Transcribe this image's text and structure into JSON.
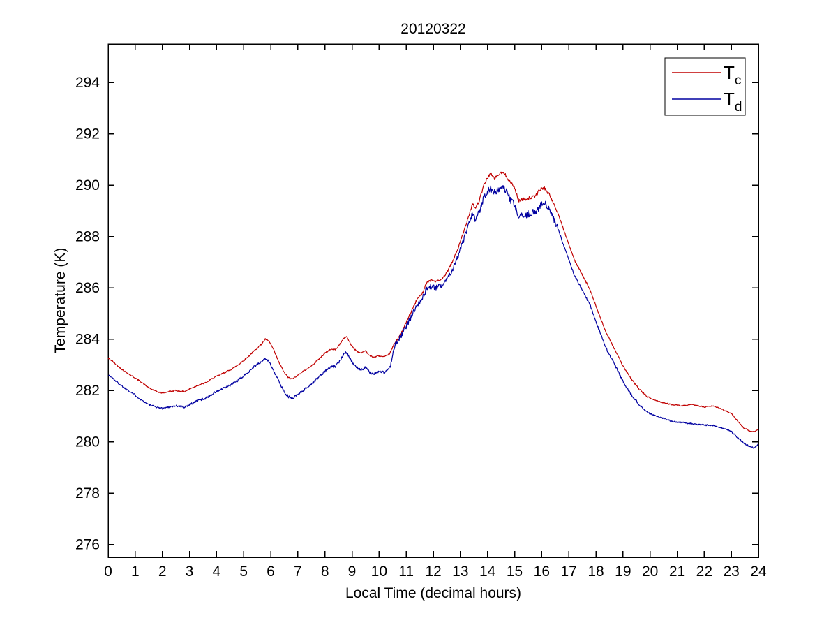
{
  "figure": {
    "title": "20120322",
    "background_color": "#ffffff"
  },
  "chart_data": {
    "type": "line",
    "title": "20120322",
    "xlabel": "Local Time (decimal hours)",
    "ylabel": "Temperature (K)",
    "xlim": [
      0,
      24
    ],
    "ylim": [
      275.5,
      295.5
    ],
    "xticks": [
      0,
      1,
      2,
      3,
      4,
      5,
      6,
      7,
      8,
      9,
      10,
      11,
      12,
      13,
      14,
      15,
      16,
      17,
      18,
      19,
      20,
      21,
      22,
      23,
      24
    ],
    "yticks": [
      276,
      278,
      280,
      282,
      284,
      286,
      288,
      290,
      292,
      294
    ],
    "grid": false,
    "box": true,
    "axis_color": "#000000",
    "legend": {
      "position": "top-right",
      "border_color": "#000000",
      "entries": [
        {
          "base": "T",
          "subscript": "c",
          "color": "#c00000"
        },
        {
          "base": "T",
          "subscript": "d",
          "color": "#0000a0"
        }
      ]
    },
    "series": [
      {
        "name": "Tc",
        "legend_base": "T",
        "legend_subscript": "c",
        "color": "#c00000",
        "points": [
          [
            0,
            283.25
          ],
          [
            0.15,
            283.15
          ],
          [
            0.3,
            283.0
          ],
          [
            0.6,
            282.75
          ],
          [
            0.9,
            282.55
          ],
          [
            1.2,
            282.35
          ],
          [
            1.5,
            282.1
          ],
          [
            1.8,
            281.95
          ],
          [
            2.0,
            281.9
          ],
          [
            2.2,
            281.95
          ],
          [
            2.5,
            282.0
          ],
          [
            2.8,
            281.95
          ],
          [
            3.0,
            282.05
          ],
          [
            3.3,
            282.2
          ],
          [
            3.6,
            282.3
          ],
          [
            3.9,
            282.5
          ],
          [
            4.2,
            282.65
          ],
          [
            4.5,
            282.8
          ],
          [
            4.8,
            283.0
          ],
          [
            5.1,
            283.25
          ],
          [
            5.4,
            283.55
          ],
          [
            5.65,
            283.8
          ],
          [
            5.8,
            284.0
          ],
          [
            5.95,
            283.9
          ],
          [
            6.1,
            283.6
          ],
          [
            6.3,
            283.1
          ],
          [
            6.5,
            282.7
          ],
          [
            6.65,
            282.5
          ],
          [
            6.8,
            282.45
          ],
          [
            7.0,
            282.6
          ],
          [
            7.2,
            282.75
          ],
          [
            7.5,
            282.95
          ],
          [
            7.8,
            283.25
          ],
          [
            8.0,
            283.45
          ],
          [
            8.2,
            283.6
          ],
          [
            8.4,
            283.6
          ],
          [
            8.55,
            283.8
          ],
          [
            8.7,
            284.05
          ],
          [
            8.8,
            284.1
          ],
          [
            8.95,
            283.8
          ],
          [
            9.1,
            283.6
          ],
          [
            9.3,
            283.45
          ],
          [
            9.5,
            283.55
          ],
          [
            9.65,
            283.35
          ],
          [
            9.8,
            283.3
          ],
          [
            10.0,
            283.35
          ],
          [
            10.2,
            283.3
          ],
          [
            10.4,
            283.45
          ],
          [
            10.6,
            283.9
          ],
          [
            10.8,
            284.2
          ],
          [
            11.0,
            284.65
          ],
          [
            11.2,
            285.1
          ],
          [
            11.4,
            285.55
          ],
          [
            11.6,
            285.8
          ],
          [
            11.75,
            286.2
          ],
          [
            11.9,
            286.3
          ],
          [
            12.1,
            286.25
          ],
          [
            12.3,
            286.3
          ],
          [
            12.5,
            286.6
          ],
          [
            12.7,
            287.0
          ],
          [
            12.9,
            287.5
          ],
          [
            13.1,
            288.1
          ],
          [
            13.3,
            288.8
          ],
          [
            13.45,
            289.3
          ],
          [
            13.55,
            289.1
          ],
          [
            13.7,
            289.4
          ],
          [
            13.85,
            289.95
          ],
          [
            14.0,
            290.3
          ],
          [
            14.1,
            290.45
          ],
          [
            14.25,
            290.25
          ],
          [
            14.4,
            290.4
          ],
          [
            14.55,
            290.5
          ],
          [
            14.7,
            290.35
          ],
          [
            14.85,
            290.1
          ],
          [
            15.0,
            289.9
          ],
          [
            15.15,
            289.4
          ],
          [
            15.35,
            289.45
          ],
          [
            15.55,
            289.5
          ],
          [
            15.75,
            289.55
          ],
          [
            15.95,
            289.85
          ],
          [
            16.1,
            289.9
          ],
          [
            16.3,
            289.6
          ],
          [
            16.6,
            288.9
          ],
          [
            16.8,
            288.3
          ],
          [
            17.0,
            287.7
          ],
          [
            17.2,
            287.1
          ],
          [
            17.5,
            286.5
          ],
          [
            17.8,
            285.9
          ],
          [
            18.1,
            285.0
          ],
          [
            18.4,
            284.2
          ],
          [
            18.7,
            283.6
          ],
          [
            19.0,
            282.95
          ],
          [
            19.3,
            282.45
          ],
          [
            19.6,
            282.05
          ],
          [
            19.9,
            281.75
          ],
          [
            20.1,
            281.65
          ],
          [
            20.4,
            281.55
          ],
          [
            20.8,
            281.45
          ],
          [
            21.2,
            281.4
          ],
          [
            21.6,
            281.45
          ],
          [
            22.0,
            281.35
          ],
          [
            22.3,
            281.4
          ],
          [
            22.6,
            281.3
          ],
          [
            23.0,
            281.1
          ],
          [
            23.2,
            280.85
          ],
          [
            23.45,
            280.55
          ],
          [
            23.7,
            280.4
          ],
          [
            23.85,
            280.4
          ],
          [
            24.0,
            280.5
          ]
        ],
        "noise_segments": [
          [
            0,
            10.4,
            0.025
          ],
          [
            10.4,
            13,
            0.04
          ],
          [
            13,
            16.3,
            0.06
          ],
          [
            16.3,
            20,
            0.03
          ],
          [
            20,
            24,
            0.02
          ]
        ]
      },
      {
        "name": "Td",
        "legend_base": "T",
        "legend_subscript": "d",
        "color": "#0000a0",
        "points": [
          [
            0,
            282.6
          ],
          [
            0.15,
            282.5
          ],
          [
            0.3,
            282.35
          ],
          [
            0.6,
            282.1
          ],
          [
            0.9,
            281.9
          ],
          [
            1.2,
            281.65
          ],
          [
            1.5,
            281.45
          ],
          [
            1.8,
            281.35
          ],
          [
            2.0,
            281.3
          ],
          [
            2.2,
            281.35
          ],
          [
            2.5,
            281.4
          ],
          [
            2.8,
            281.35
          ],
          [
            3.0,
            281.45
          ],
          [
            3.3,
            281.6
          ],
          [
            3.6,
            281.7
          ],
          [
            3.9,
            281.9
          ],
          [
            4.2,
            282.05
          ],
          [
            4.5,
            282.2
          ],
          [
            4.8,
            282.4
          ],
          [
            5.1,
            282.65
          ],
          [
            5.4,
            282.95
          ],
          [
            5.65,
            283.1
          ],
          [
            5.8,
            283.25
          ],
          [
            5.95,
            283.1
          ],
          [
            6.1,
            282.8
          ],
          [
            6.3,
            282.35
          ],
          [
            6.5,
            281.95
          ],
          [
            6.65,
            281.75
          ],
          [
            6.8,
            281.7
          ],
          [
            7.0,
            281.85
          ],
          [
            7.2,
            282.0
          ],
          [
            7.5,
            282.25
          ],
          [
            7.8,
            282.55
          ],
          [
            8.0,
            282.75
          ],
          [
            8.2,
            282.9
          ],
          [
            8.4,
            282.95
          ],
          [
            8.55,
            283.15
          ],
          [
            8.7,
            283.45
          ],
          [
            8.8,
            283.5
          ],
          [
            8.95,
            283.2
          ],
          [
            9.1,
            282.95
          ],
          [
            9.3,
            282.8
          ],
          [
            9.5,
            282.9
          ],
          [
            9.65,
            282.7
          ],
          [
            9.8,
            282.65
          ],
          [
            10.0,
            282.75
          ],
          [
            10.2,
            282.7
          ],
          [
            10.4,
            282.9
          ],
          [
            10.6,
            283.8
          ],
          [
            10.8,
            284.1
          ],
          [
            11.0,
            284.5
          ],
          [
            11.2,
            284.9
          ],
          [
            11.4,
            285.35
          ],
          [
            11.6,
            285.6
          ],
          [
            11.75,
            285.95
          ],
          [
            11.9,
            286.05
          ],
          [
            12.1,
            286.0
          ],
          [
            12.3,
            286.1
          ],
          [
            12.5,
            286.35
          ],
          [
            12.7,
            286.7
          ],
          [
            12.9,
            287.2
          ],
          [
            13.1,
            287.8
          ],
          [
            13.3,
            288.4
          ],
          [
            13.45,
            288.9
          ],
          [
            13.55,
            288.6
          ],
          [
            13.7,
            289.0
          ],
          [
            13.85,
            289.5
          ],
          [
            14.0,
            289.75
          ],
          [
            14.1,
            289.9
          ],
          [
            14.25,
            289.7
          ],
          [
            14.4,
            289.8
          ],
          [
            14.55,
            289.9
          ],
          [
            14.7,
            289.75
          ],
          [
            14.85,
            289.4
          ],
          [
            15.0,
            289.2
          ],
          [
            15.15,
            288.75
          ],
          [
            15.35,
            288.8
          ],
          [
            15.55,
            288.9
          ],
          [
            15.75,
            288.95
          ],
          [
            15.95,
            289.2
          ],
          [
            16.1,
            289.3
          ],
          [
            16.3,
            289.0
          ],
          [
            16.6,
            288.3
          ],
          [
            16.8,
            287.7
          ],
          [
            17.0,
            287.1
          ],
          [
            17.2,
            286.5
          ],
          [
            17.5,
            285.9
          ],
          [
            17.8,
            285.3
          ],
          [
            18.1,
            284.4
          ],
          [
            18.4,
            283.6
          ],
          [
            18.7,
            283.0
          ],
          [
            19.0,
            282.35
          ],
          [
            19.3,
            281.85
          ],
          [
            19.6,
            281.45
          ],
          [
            19.9,
            281.15
          ],
          [
            20.1,
            281.05
          ],
          [
            20.4,
            280.95
          ],
          [
            20.8,
            280.8
          ],
          [
            21.2,
            280.75
          ],
          [
            21.6,
            280.7
          ],
          [
            22.0,
            280.65
          ],
          [
            22.3,
            280.65
          ],
          [
            22.6,
            280.55
          ],
          [
            23.0,
            280.4
          ],
          [
            23.2,
            280.2
          ],
          [
            23.45,
            279.95
          ],
          [
            23.7,
            279.8
          ],
          [
            23.85,
            279.75
          ],
          [
            24.0,
            279.9
          ]
        ],
        "noise_segments": [
          [
            0,
            2.5,
            0.035
          ],
          [
            2.5,
            6.2,
            0.045
          ],
          [
            6.2,
            10.4,
            0.05
          ],
          [
            10.4,
            13,
            0.1
          ],
          [
            13,
            16.6,
            0.14
          ],
          [
            16.6,
            19.5,
            0.04
          ],
          [
            19.5,
            24,
            0.03
          ]
        ]
      }
    ]
  }
}
